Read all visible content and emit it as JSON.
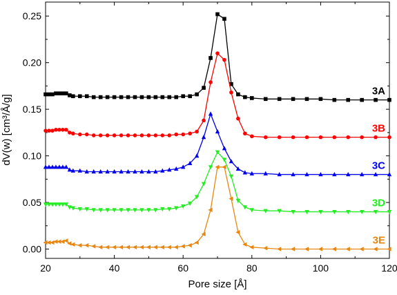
{
  "chart_data": {
    "type": "line",
    "xlabel": "Pore size [Å]",
    "ylabel": "dV(w) [cm³/Å/g]",
    "xlim": [
      20,
      120
    ],
    "ylim": [
      -0.01,
      0.265
    ],
    "xticks": [
      "20",
      "40",
      "60",
      "80",
      "100",
      "120"
    ],
    "yticks": [
      "0.00",
      "0.05",
      "0.10",
      "0.15",
      "0.20",
      "0.25"
    ],
    "grid": false,
    "series": [
      {
        "name": "3A",
        "color": "#000000",
        "marker": "square",
        "x": [
          20,
          21,
          22,
          23,
          24,
          25,
          26,
          27,
          28,
          30,
          32,
          34,
          36,
          38,
          40,
          42,
          44,
          46,
          48,
          50,
          52,
          54,
          56,
          58,
          60,
          62,
          64,
          66,
          68,
          70,
          72,
          74,
          76,
          78,
          80,
          84,
          88,
          92,
          96,
          100,
          104,
          108,
          112,
          116,
          120
        ],
        "y": [
          0.166,
          0.166,
          0.166,
          0.167,
          0.167,
          0.167,
          0.167,
          0.165,
          0.164,
          0.164,
          0.164,
          0.163,
          0.163,
          0.163,
          0.163,
          0.163,
          0.163,
          0.163,
          0.163,
          0.163,
          0.163,
          0.163,
          0.163,
          0.163,
          0.164,
          0.164,
          0.166,
          0.173,
          0.205,
          0.252,
          0.247,
          0.177,
          0.166,
          0.163,
          0.162,
          0.161,
          0.161,
          0.161,
          0.161,
          0.161,
          0.16,
          0.16,
          0.16,
          0.16,
          0.16
        ]
      },
      {
        "name": "3B",
        "color": "#ff0000",
        "marker": "circle",
        "x": [
          20,
          21,
          22,
          23,
          24,
          25,
          26,
          27,
          28,
          30,
          32,
          34,
          36,
          38,
          40,
          42,
          44,
          46,
          48,
          50,
          52,
          54,
          56,
          58,
          60,
          62,
          64,
          66,
          68,
          70,
          72,
          74,
          76,
          78,
          80,
          84,
          88,
          92,
          96,
          100,
          104,
          108,
          112,
          116,
          120
        ],
        "y": [
          0.127,
          0.127,
          0.127,
          0.128,
          0.128,
          0.128,
          0.128,
          0.125,
          0.124,
          0.123,
          0.123,
          0.122,
          0.122,
          0.122,
          0.122,
          0.122,
          0.122,
          0.122,
          0.122,
          0.122,
          0.122,
          0.122,
          0.122,
          0.123,
          0.123,
          0.124,
          0.126,
          0.138,
          0.179,
          0.21,
          0.203,
          0.168,
          0.14,
          0.124,
          0.121,
          0.12,
          0.12,
          0.12,
          0.12,
          0.12,
          0.12,
          0.12,
          0.12,
          0.12,
          0.12
        ]
      },
      {
        "name": "3C",
        "color": "#0000ee",
        "marker": "triangle-up",
        "x": [
          20,
          21,
          22,
          23,
          24,
          25,
          26,
          27,
          28,
          30,
          32,
          34,
          36,
          38,
          40,
          42,
          44,
          46,
          48,
          50,
          52,
          54,
          56,
          58,
          60,
          62,
          64,
          66,
          68,
          70,
          72,
          74,
          76,
          78,
          80,
          84,
          88,
          92,
          96,
          100,
          104,
          108,
          112,
          116,
          120
        ],
        "y": [
          0.088,
          0.088,
          0.088,
          0.088,
          0.088,
          0.088,
          0.088,
          0.085,
          0.084,
          0.084,
          0.083,
          0.083,
          0.083,
          0.083,
          0.083,
          0.083,
          0.083,
          0.083,
          0.083,
          0.083,
          0.083,
          0.084,
          0.085,
          0.086,
          0.088,
          0.092,
          0.1,
          0.12,
          0.145,
          0.126,
          0.108,
          0.094,
          0.086,
          0.082,
          0.081,
          0.081,
          0.08,
          0.08,
          0.08,
          0.08,
          0.08,
          0.08,
          0.08,
          0.08,
          0.08
        ]
      },
      {
        "name": "3D",
        "color": "#22ee22",
        "marker": "triangle-down",
        "x": [
          20,
          21,
          22,
          23,
          24,
          25,
          26,
          27,
          28,
          30,
          32,
          34,
          36,
          38,
          40,
          42,
          44,
          46,
          48,
          50,
          52,
          54,
          56,
          58,
          60,
          62,
          64,
          66,
          68,
          70,
          72,
          74,
          76,
          78,
          80,
          84,
          88,
          92,
          96,
          100,
          104,
          108,
          112,
          116,
          120
        ],
        "y": [
          0.048,
          0.048,
          0.048,
          0.048,
          0.048,
          0.048,
          0.048,
          0.045,
          0.044,
          0.043,
          0.043,
          0.042,
          0.042,
          0.042,
          0.042,
          0.042,
          0.042,
          0.042,
          0.042,
          0.042,
          0.042,
          0.043,
          0.043,
          0.044,
          0.046,
          0.049,
          0.056,
          0.07,
          0.088,
          0.104,
          0.096,
          0.078,
          0.052,
          0.045,
          0.042,
          0.041,
          0.041,
          0.04,
          0.04,
          0.04,
          0.04,
          0.04,
          0.04,
          0.04,
          0.04
        ]
      },
      {
        "name": "3E",
        "color": "#e8860f",
        "marker": "triangle-left",
        "x": [
          20,
          21,
          22,
          23,
          24,
          25,
          26,
          27,
          28,
          30,
          32,
          34,
          36,
          38,
          40,
          42,
          44,
          46,
          48,
          50,
          52,
          54,
          56,
          58,
          60,
          62,
          64,
          66,
          68,
          70,
          72,
          74,
          76,
          78,
          80,
          84,
          88,
          92,
          96,
          100,
          104,
          108,
          112,
          116,
          120
        ],
        "y": [
          0.007,
          0.007,
          0.007,
          0.008,
          0.008,
          0.008,
          0.009,
          0.006,
          0.005,
          0.004,
          0.004,
          0.003,
          0.002,
          0.002,
          0.002,
          0.002,
          0.002,
          0.002,
          0.002,
          0.002,
          0.002,
          0.002,
          0.002,
          0.002,
          0.003,
          0.004,
          0.007,
          0.016,
          0.042,
          0.088,
          0.088,
          0.054,
          0.018,
          0.005,
          0.002,
          0.001,
          0.0,
          0.0,
          0.0,
          0.0,
          0.0,
          0.0,
          0.0,
          0.0,
          0.0
        ]
      }
    ]
  }
}
